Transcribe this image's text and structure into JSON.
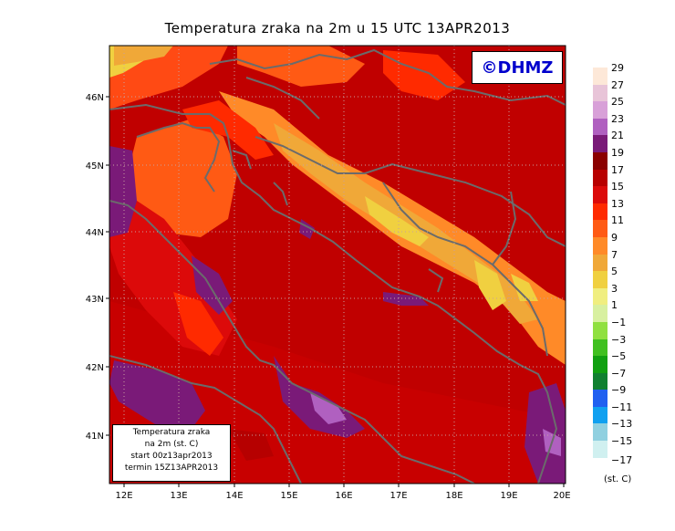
{
  "title": "Temperatura zraka na 2m u 15 UTC 13APR2013",
  "logo": "©DHMZ",
  "info": {
    "line1": "Temperatura zraka",
    "line2": "na 2m (st. C)",
    "line3": "start 00z13apr2013",
    "line4": "termin 15Z13APR2013"
  },
  "axes": {
    "lon_labels": [
      "12E",
      "13E",
      "14E",
      "15E",
      "16E",
      "17E",
      "18E",
      "19E",
      "20E"
    ],
    "lat_labels": [
      "46N",
      "45N",
      "44N",
      "43N",
      "42N",
      "41N"
    ]
  },
  "legend": {
    "levels": [
      {
        "label": "29",
        "color": "#fde8d8"
      },
      {
        "label": "27",
        "color": "#e8c4d8"
      },
      {
        "label": "25",
        "color": "#d8a0d8"
      },
      {
        "label": "23",
        "color": "#b060c0"
      },
      {
        "label": "21",
        "color": "#7a1a78"
      },
      {
        "label": "19",
        "color": "#8b0000"
      },
      {
        "label": "17",
        "color": "#b80000"
      },
      {
        "label": "15",
        "color": "#dc0a0a"
      },
      {
        "label": "13",
        "color": "#ff2a00"
      },
      {
        "label": "11",
        "color": "#ff5a14"
      },
      {
        "label": "9",
        "color": "#ff8a28"
      },
      {
        "label": "7",
        "color": "#f0a838"
      },
      {
        "label": "5",
        "color": "#f0d040"
      },
      {
        "label": "3",
        "color": "#f0ee80"
      },
      {
        "label": "1",
        "color": "#d8f0a0"
      },
      {
        "label": "−1",
        "color": "#90e040"
      },
      {
        "label": "−3",
        "color": "#40c020"
      },
      {
        "label": "−5",
        "color": "#10a010"
      },
      {
        "label": "−7",
        "color": "#108030"
      },
      {
        "label": "−9",
        "color": "#2060f0"
      },
      {
        "label": "−11",
        "color": "#10a0f0"
      },
      {
        "label": "−13",
        "color": "#90d0e0"
      },
      {
        "label": "−15",
        "color": "#d0f0f0"
      }
    ],
    "bottom_label": "−17",
    "unit": "(st. C)"
  }
}
